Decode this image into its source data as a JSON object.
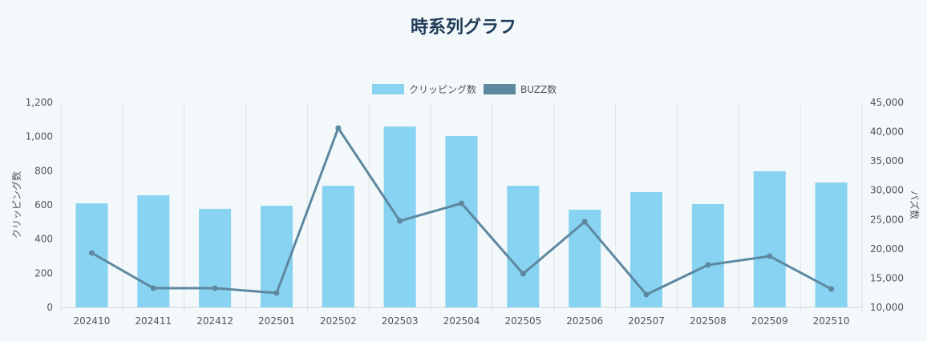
{
  "chart_data": {
    "type": "bar",
    "title": "時系列グラフ",
    "categories": [
      "202410",
      "202411",
      "202412",
      "202501",
      "202502",
      "202503",
      "202504",
      "202505",
      "202506",
      "202507",
      "202508",
      "202509",
      "202510"
    ],
    "series": [
      {
        "name": "クリッピング数",
        "type": "bar",
        "axis": "left",
        "color": "#87d3f1",
        "values": [
          609,
          656,
          577,
          595,
          712,
          1059,
          1003,
          712,
          572,
          675,
          605,
          797,
          731
        ]
      },
      {
        "name": "BUZZ数",
        "type": "line",
        "axis": "right",
        "color": "#5e88a0",
        "values": [
          19300,
          13280,
          13280,
          12460,
          40620,
          24760,
          27770,
          15740,
          24630,
          12190,
          17250,
          18750,
          13140
        ]
      }
    ],
    "ylabel": "クリッピング数",
    "y2label": "バズ数",
    "ylim": [
      0,
      1200
    ],
    "y2lim": [
      10000,
      45000
    ],
    "yticks": [
      "0",
      "200",
      "400",
      "600",
      "800",
      "1,000",
      "1,200"
    ],
    "y2ticks": [
      "10,000",
      "15,000",
      "20,000",
      "25,000",
      "30,000",
      "35,000",
      "40,000",
      "45,000"
    ],
    "legend": "top",
    "grid": true
  }
}
